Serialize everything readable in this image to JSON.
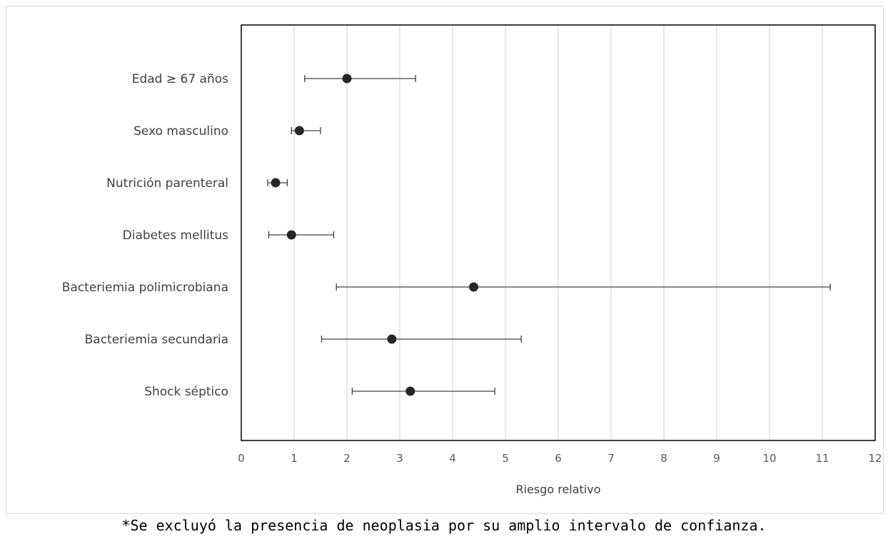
{
  "chart_data": {
    "type": "scatter",
    "subtype": "forest-plot",
    "xlabel": "Riesgo relativo",
    "ylabel": "",
    "xlim": [
      0,
      12
    ],
    "xticks": [
      "0",
      "1",
      "2",
      "3",
      "4",
      "5",
      "6",
      "7",
      "8",
      "9",
      "10",
      "11",
      "12"
    ],
    "grid": "vertical",
    "legend": "none",
    "categories": [
      "Edad ≥ 67 años",
      "Sexo masculino",
      "Nutrición parenteral",
      "Diabetes mellitus",
      "Bacteriemia polimicrobiana",
      "Bacteriemia secundaria",
      "Shock séptico"
    ],
    "estimates": [
      2.0,
      1.1,
      0.65,
      0.95,
      4.4,
      2.85,
      3.2
    ],
    "ci_lower": [
      1.2,
      0.95,
      0.5,
      0.52,
      1.8,
      1.52,
      2.1
    ],
    "ci_upper": [
      3.3,
      1.5,
      0.87,
      1.75,
      11.15,
      5.3,
      4.8
    ],
    "colors": {
      "marker": "#262626",
      "errorbar": "#404040",
      "grid": "#d9d9d9",
      "axis": "#000000"
    }
  },
  "footnote": "*Se excluyó la presencia de neoplasia por su amplio intervalo de confianza."
}
